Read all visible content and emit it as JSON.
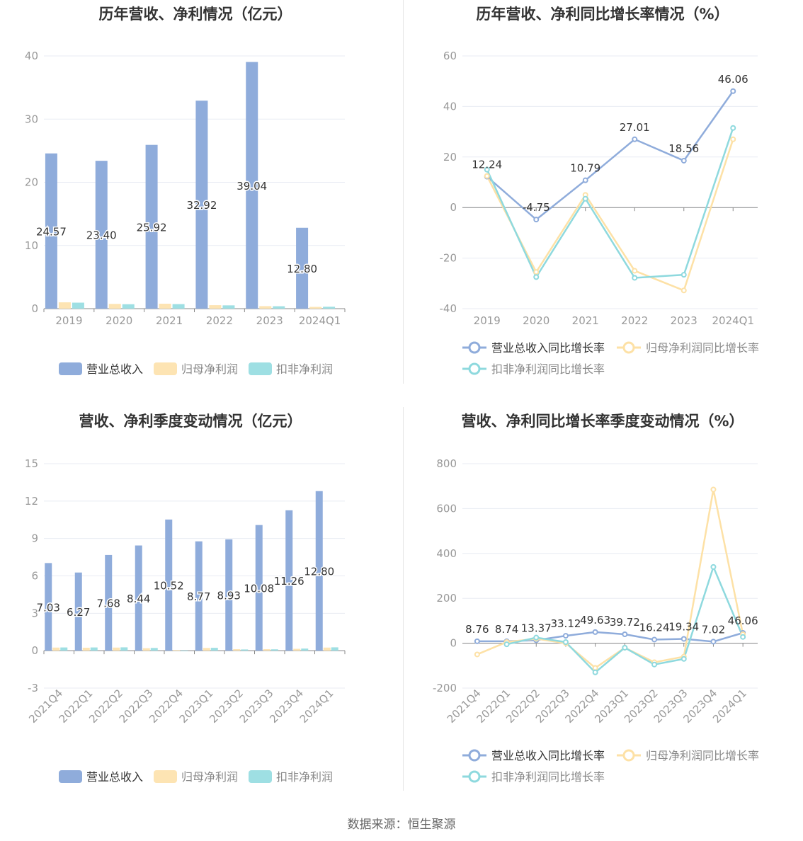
{
  "colors": {
    "revenue": "#8facdb",
    "net_profit": "#fde4b3",
    "deducted_profit": "#9edfe3",
    "revenue_line": "#8facdb",
    "net_profit_line": "#fde1a6",
    "deducted_profit_line": "#8ed9de",
    "axis_text": "#999999",
    "grid": "#e8ebf3",
    "title": "#333333"
  },
  "source": "数据来源：恒生聚源",
  "chart_data": [
    {
      "type": "bar",
      "title": "历年营收、净利情况（亿元）",
      "categories": [
        "2019",
        "2020",
        "2021",
        "2022",
        "2023",
        "2024Q1"
      ],
      "ylim": [
        0,
        40
      ],
      "yticks": [
        "0",
        "10",
        "20",
        "30",
        "40"
      ],
      "series": [
        {
          "name": "营业总收入",
          "values": [
            24.57,
            23.4,
            25.92,
            32.92,
            39.04,
            12.8
          ],
          "labels": [
            "24.57",
            "23.40",
            "25.92",
            "32.92",
            "39.04",
            "12.80"
          ]
        },
        {
          "name": "归母净利润",
          "values": [
            1.0,
            0.75,
            0.78,
            0.55,
            0.4,
            0.28
          ]
        },
        {
          "name": "扣非净利润",
          "values": [
            0.95,
            0.7,
            0.72,
            0.52,
            0.38,
            0.3
          ]
        }
      ],
      "legend": "bottom",
      "grid": true
    },
    {
      "type": "line",
      "title": "历年营收、净利同比增长率情况（%）",
      "categories": [
        "2019",
        "2020",
        "2021",
        "2022",
        "2023",
        "2024Q1"
      ],
      "ylim": [
        -40,
        60
      ],
      "yticks": [
        "-40",
        "-20",
        "0",
        "20",
        "40",
        "60"
      ],
      "series": [
        {
          "name": "营业总收入同比增长率",
          "values": [
            12.24,
            -4.75,
            10.79,
            27.01,
            18.56,
            46.06
          ],
          "labels": [
            "12.24",
            "-4.75",
            "10.79",
            "27.01",
            "18.56",
            "46.06"
          ]
        },
        {
          "name": "归母净利润同比增长率",
          "values": [
            12.5,
            -25.5,
            5.0,
            -25.0,
            -32.8,
            27.0
          ]
        },
        {
          "name": "扣非净利润同比增长率",
          "values": [
            15.0,
            -27.5,
            3.5,
            -27.8,
            -26.6,
            31.5
          ]
        }
      ],
      "legend": "bottom",
      "grid": true
    },
    {
      "type": "bar",
      "title": "营收、净利季度变动情况（亿元）",
      "categories": [
        "2021Q4",
        "2022Q1",
        "2022Q2",
        "2022Q3",
        "2022Q4",
        "2023Q1",
        "2023Q2",
        "2023Q3",
        "2023Q4",
        "2024Q1"
      ],
      "ylim": [
        -3,
        15
      ],
      "yticks": [
        "-3",
        "0",
        "3",
        "6",
        "9",
        "12",
        "15"
      ],
      "series": [
        {
          "name": "营业总收入",
          "values": [
            7.03,
            6.27,
            7.68,
            8.44,
            10.52,
            8.77,
            8.93,
            10.08,
            11.26,
            12.8
          ],
          "labels": [
            "7.03",
            "6.27",
            "7.68",
            "8.44",
            "10.52",
            "8.77",
            "8.93",
            "10.08",
            "11.26",
            "12.80"
          ]
        },
        {
          "name": "归母净利润",
          "values": [
            0.25,
            0.24,
            0.25,
            0.2,
            0.05,
            0.22,
            0.12,
            0.12,
            0.15,
            0.25
          ]
        },
        {
          "name": "扣非净利润",
          "values": [
            0.26,
            0.26,
            0.27,
            0.22,
            -0.03,
            0.23,
            0.1,
            0.11,
            0.17,
            0.27
          ]
        }
      ],
      "legend": "bottom",
      "grid": true
    },
    {
      "type": "line",
      "title": "营收、净利同比增长率季度变动情况（%）",
      "categories": [
        "2021Q4",
        "2022Q1",
        "2022Q2",
        "2022Q3",
        "2022Q4",
        "2023Q1",
        "2023Q2",
        "2023Q3",
        "2023Q4",
        "2024Q1"
      ],
      "ylim": [
        -200,
        800
      ],
      "yticks": [
        "-200",
        "0",
        "200",
        "400",
        "600",
        "800"
      ],
      "series": [
        {
          "name": "营业总收入同比增长率",
          "values": [
            8.76,
            8.74,
            13.37,
            33.12,
            49.63,
            39.72,
            16.24,
            19.34,
            7.02,
            46.06
          ],
          "labels": [
            "8.76",
            "8.74",
            "13.37",
            "33.12",
            "49.63",
            "39.72",
            "16.24",
            "19.34",
            "7.02",
            "46.06"
          ]
        },
        {
          "name": "归母净利润同比增长率",
          "values": [
            -50,
            5,
            20,
            0,
            -110,
            -20,
            -85,
            -60,
            685,
            40
          ]
        },
        {
          "name": "扣非净利润同比增长率",
          "values": [
            null,
            -5,
            25,
            5,
            -130,
            -20,
            -95,
            -70,
            340,
            28
          ]
        }
      ],
      "legend": "bottom",
      "grid": true
    }
  ]
}
